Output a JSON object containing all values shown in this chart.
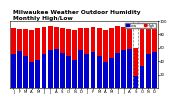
{
  "title": "Milwaukee Weather Outdoor Humidity",
  "subtitle": "Monthly High/Low",
  "high_values": [
    90,
    88,
    88,
    87,
    90,
    91,
    92,
    91,
    90,
    88,
    87,
    90,
    90,
    91,
    89,
    87,
    90,
    92,
    91,
    90,
    60,
    88,
    90,
    89
  ],
  "low_values": [
    50,
    55,
    47,
    38,
    42,
    50,
    56,
    58,
    52,
    47,
    42,
    56,
    50,
    54,
    47,
    38,
    44,
    52,
    56,
    58,
    18,
    32,
    50,
    54
  ],
  "missing_bar": 20,
  "labels": [
    "J",
    "F",
    "M",
    "A",
    "M",
    "J",
    "J",
    "A",
    "S",
    "O",
    "N",
    "D",
    "J",
    "F",
    "M",
    "A",
    "M",
    "J",
    "J",
    "A",
    "S",
    "O",
    "N",
    "D"
  ],
  "high_color": "#ee0000",
  "low_color": "#0000cc",
  "background_color": "#ffffff",
  "plot_bg": "#ffffff",
  "ylim": [
    0,
    100
  ],
  "title_fontsize": 4.2,
  "tick_fontsize": 2.8,
  "legend_fontsize": 2.5,
  "legend_labels": [
    "Low",
    "High"
  ],
  "legend_colors": [
    "#0000cc",
    "#ee0000"
  ],
  "yticks": [
    20,
    40,
    60,
    80,
    100
  ],
  "bar_width": 0.8
}
